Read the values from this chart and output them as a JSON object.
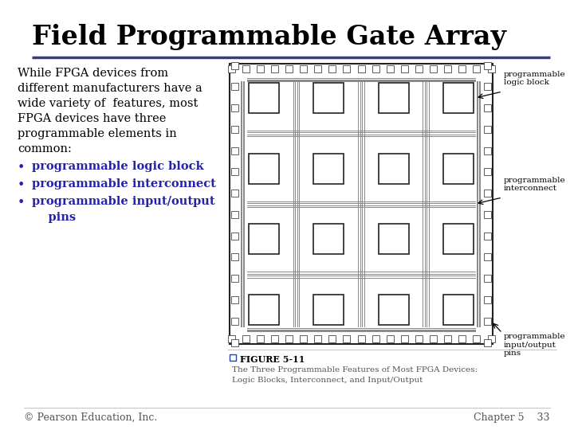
{
  "title": "Field Programmable Gate Array",
  "title_color": "#000000",
  "title_fontsize": 24,
  "title_font": "serif",
  "underline_color": "#3a3a8c",
  "body_text": "While FPGA devices from\ndifferent manufacturers have a\nwide variety of  features, most\nFPGA devices have three\nprogrammable elements in\ncommon:",
  "bullet_color": "#2222aa",
  "bullets": [
    "programmable logic block",
    "programmable interconnect",
    "programmable input/output\n    pins"
  ],
  "body_fontsize": 10.5,
  "footer_left": "© Pearson Education, Inc.",
  "footer_right": "Chapter 5    33",
  "footer_fontsize": 9,
  "fig_caption_line1": "FIGURE 5-11",
  "fig_caption_line2": "The Three Programmable Features of Most FPGA Devices:",
  "fig_caption_line3": "Logic Blocks, Interconnect, and Input/Output",
  "bg_color": "#ffffff",
  "box_color": "#333333"
}
